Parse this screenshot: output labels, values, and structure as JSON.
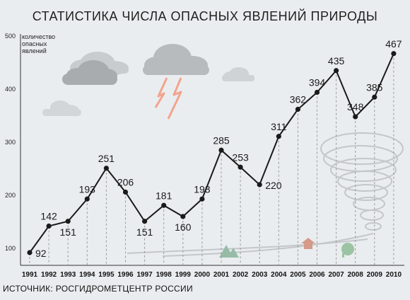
{
  "chart_data": {
    "type": "line",
    "title": "СТАТИСТИКА ЧИСЛА ОПАСНЫХ ЯВЛЕНИЙ ПРИРОДЫ",
    "ylabel": "количество опасных явлений",
    "xlabel": "",
    "categories": [
      "1991",
      "1992",
      "1993",
      "1994",
      "1995",
      "1996",
      "1997",
      "1998",
      "1999",
      "2000",
      "2001",
      "2002",
      "2003",
      "2004",
      "2005",
      "2006",
      "2007",
      "2008",
      "2009",
      "2010"
    ],
    "values": [
      92,
      142,
      151,
      193,
      251,
      206,
      151,
      181,
      160,
      193,
      285,
      253,
      220,
      311,
      362,
      394,
      435,
      348,
      385,
      467
    ],
    "labels": [
      "92",
      "142",
      "151",
      "193",
      "251",
      "206",
      "151",
      "181",
      "160",
      "193",
      "285",
      "253",
      "220",
      "311",
      "362",
      "394",
      "435",
      "348",
      "385",
      "467"
    ],
    "ylim": [
      80,
      500
    ],
    "yticks": [
      "100",
      "200",
      "300",
      "400",
      "500"
    ],
    "grid": false,
    "colors": {
      "line": "#1a1a1a",
      "marker": "#1a1a1a",
      "guide": "#9a9a9a",
      "background": "#eaedef"
    }
  },
  "source": "ИСТОЧНИК: РОСГИДРОМЕТЦЕНТР РОССИИ",
  "decorations": [
    "cloud-icon",
    "storm-cloud-icon",
    "lightning-icon",
    "tree-icon",
    "house-icon",
    "tornado-icon"
  ]
}
